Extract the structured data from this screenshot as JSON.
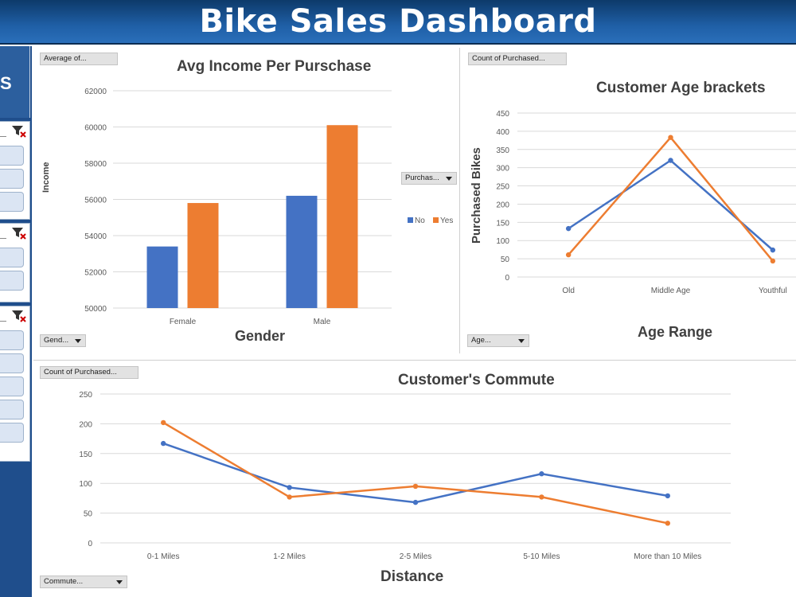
{
  "dashboard": {
    "title": "Bike Sales Dashboard"
  },
  "colors": {
    "series_no": "#4472c4",
    "series_yes": "#ed7d31",
    "banner": "#1f5fa6",
    "slicer_bg": "#1f4e8c"
  },
  "slicers": {
    "icon": "clear-filter-icon",
    "groups": [
      {
        "name": "slicer-1",
        "item_count": 3
      },
      {
        "name": "slicer-2",
        "item_count": 2
      },
      {
        "name": "slicer-3",
        "item_count": 5
      }
    ]
  },
  "income_panel": {
    "value_field_button": "Average of...",
    "axis_field_button": "Gend...",
    "legend_field_button": "Purchas...",
    "legend_items": [
      "No",
      "Yes"
    ]
  },
  "age_panel": {
    "value_field_button": "Count of Purchased...",
    "axis_field_button": "Age..."
  },
  "commute_panel": {
    "value_field_button": "Count of Purchased...",
    "axis_field_button": "Commute..."
  },
  "chart_data": [
    {
      "id": "income",
      "type": "bar",
      "title": "Avg Income Per Purschase",
      "xlabel": "Gender",
      "ylabel": "Income",
      "categories": [
        "Female",
        "Male"
      ],
      "series": [
        {
          "name": "No",
          "values": [
            53400,
            56200
          ]
        },
        {
          "name": "Yes",
          "values": [
            55800,
            60100
          ]
        }
      ],
      "ylim": [
        50000,
        62000
      ],
      "yticks": [
        50000,
        52000,
        54000,
        56000,
        58000,
        60000,
        62000
      ],
      "grid": true,
      "legend": "right"
    },
    {
      "id": "age",
      "type": "line",
      "title": "Customer Age brackets",
      "xlabel": "Age Range",
      "ylabel": "Purchased Bikes",
      "categories": [
        "Old",
        "Middle Age",
        "Youthful"
      ],
      "series": [
        {
          "values": [
            133,
            320,
            74
          ]
        },
        {
          "values": [
            61,
            383,
            44
          ]
        }
      ],
      "ylim": [
        0,
        450
      ],
      "yticks": [
        0,
        50,
        100,
        150,
        200,
        250,
        300,
        350,
        400,
        450
      ],
      "grid": true
    },
    {
      "id": "commute",
      "type": "line",
      "title": "Customer's Commute",
      "xlabel": "Distance",
      "ylabel": "",
      "categories": [
        "0-1 Miles",
        "1-2 Miles",
        "2-5 Miles",
        "5-10 Miles",
        "More than 10 Miles"
      ],
      "series": [
        {
          "values": [
            167,
            93,
            68,
            116,
            79
          ]
        },
        {
          "values": [
            202,
            77,
            95,
            77,
            33
          ]
        }
      ],
      "ylim": [
        0,
        250
      ],
      "yticks": [
        0,
        50,
        100,
        150,
        200,
        250
      ],
      "grid": true
    }
  ]
}
